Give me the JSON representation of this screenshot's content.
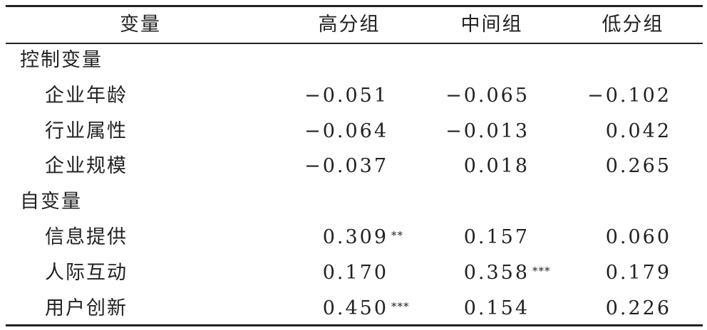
{
  "header": {
    "variable": "变量",
    "high": "高分组",
    "mid": "中间组",
    "low": "低分组"
  },
  "groups": [
    {
      "label": "控制变量",
      "rows": [
        {
          "label": "企业年龄",
          "high": {
            "v": "−0.051",
            "s": ""
          },
          "mid": {
            "v": "−0.065",
            "s": ""
          },
          "low": {
            "v": "−0.102",
            "s": ""
          }
        },
        {
          "label": "行业属性",
          "high": {
            "v": "−0.064",
            "s": ""
          },
          "mid": {
            "v": "−0.013",
            "s": ""
          },
          "low": {
            "v": "0.042",
            "s": ""
          }
        },
        {
          "label": "企业规模",
          "high": {
            "v": "−0.037",
            "s": ""
          },
          "mid": {
            "v": "0.018",
            "s": ""
          },
          "low": {
            "v": "0.265",
            "s": ""
          }
        }
      ]
    },
    {
      "label": "自变量",
      "rows": [
        {
          "label": "信息提供",
          "high": {
            "v": "0.309",
            "s": "**"
          },
          "mid": {
            "v": "0.157",
            "s": ""
          },
          "low": {
            "v": "0.060",
            "s": ""
          }
        },
        {
          "label": "人际互动",
          "high": {
            "v": "0.170",
            "s": ""
          },
          "mid": {
            "v": "0.358",
            "s": "***"
          },
          "low": {
            "v": "0.179",
            "s": ""
          }
        },
        {
          "label": "用户创新",
          "high": {
            "v": "0.450",
            "s": "***"
          },
          "mid": {
            "v": "0.154",
            "s": ""
          },
          "low": {
            "v": "0.226",
            "s": ""
          }
        }
      ]
    }
  ]
}
